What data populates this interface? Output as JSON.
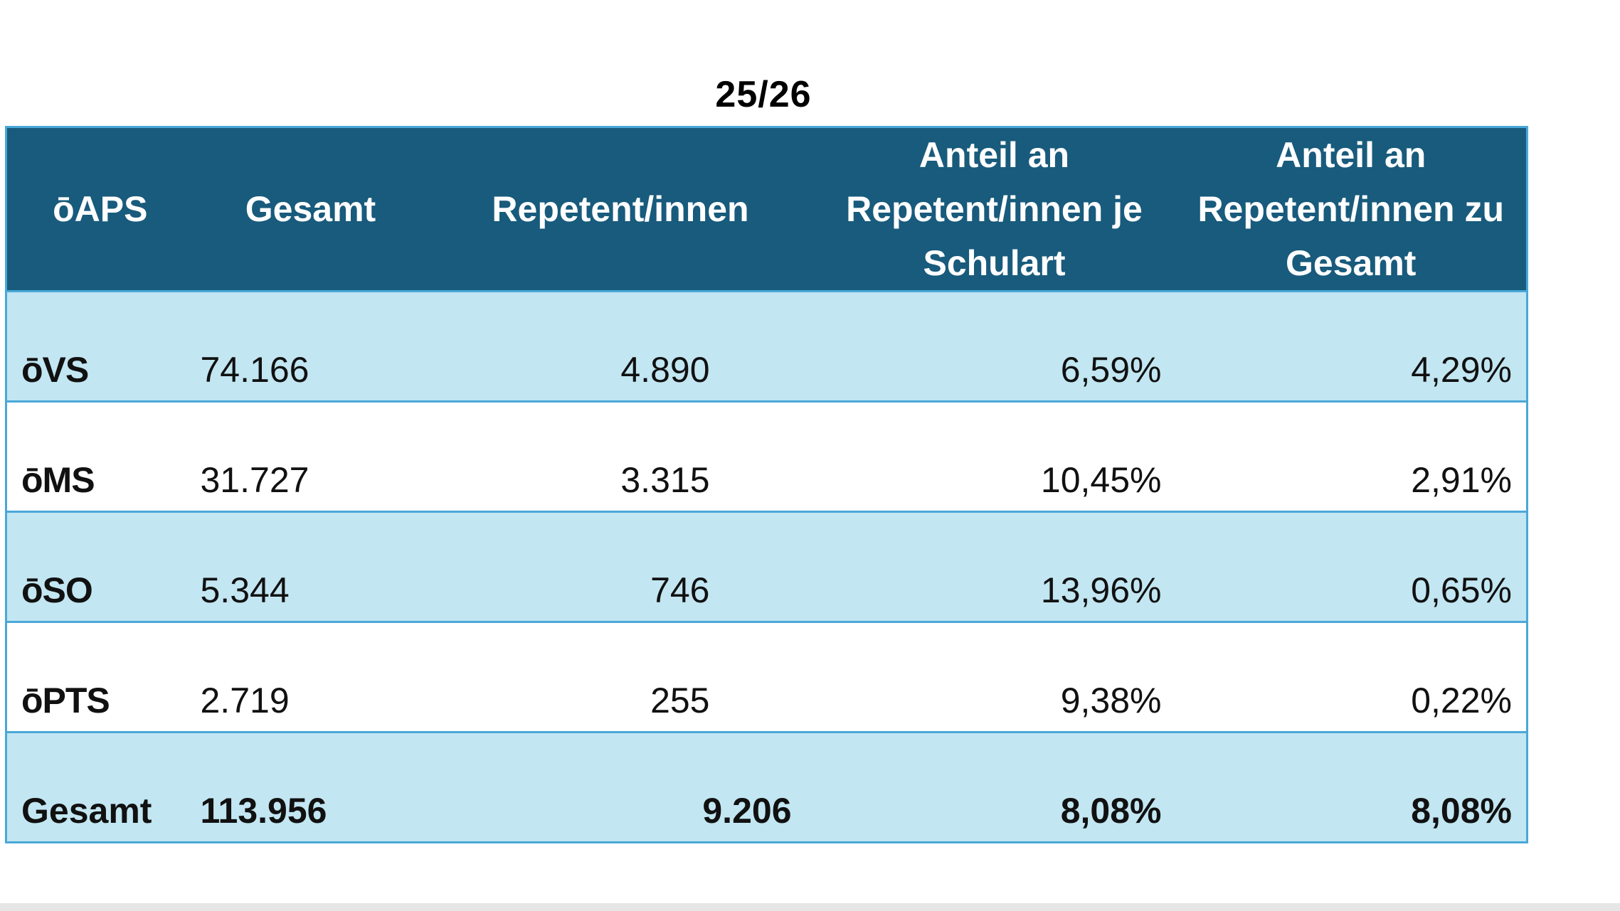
{
  "period_title": "25/26",
  "table": {
    "headers": [
      "ōAPS",
      "Gesamt",
      "Repetent/innen",
      "Anteil an Repetent/innen je Schulart",
      "Anteil an Repetent/innen zu Gesamt"
    ],
    "rows": [
      {
        "label": "ōVS",
        "gesamt": "74.166",
        "repetenten": "4.890",
        "anteil_schulart": "6,59%",
        "anteil_gesamt": "4,29%"
      },
      {
        "label": "ōMS",
        "gesamt": "31.727",
        "repetenten": "3.315",
        "anteil_schulart": "10,45%",
        "anteil_gesamt": "2,91%"
      },
      {
        "label": "ōSO",
        "gesamt": "5.344",
        "repetenten": "746",
        "anteil_schulart": "13,96%",
        "anteil_gesamt": "0,65%"
      },
      {
        "label": "ōPTS",
        "gesamt": "2.719",
        "repetenten": "255",
        "anteil_schulart": "9,38%",
        "anteil_gesamt": "0,22%"
      }
    ],
    "total": {
      "label": "Gesamt",
      "gesamt": "113.956",
      "repetenten": "9.206",
      "anteil_schulart": "8,08%",
      "anteil_gesamt": "8,08%"
    }
  },
  "colors": {
    "header_bg": "#185b7c",
    "row_shade": "#c2e6f2",
    "border": "#4aa8d8"
  }
}
